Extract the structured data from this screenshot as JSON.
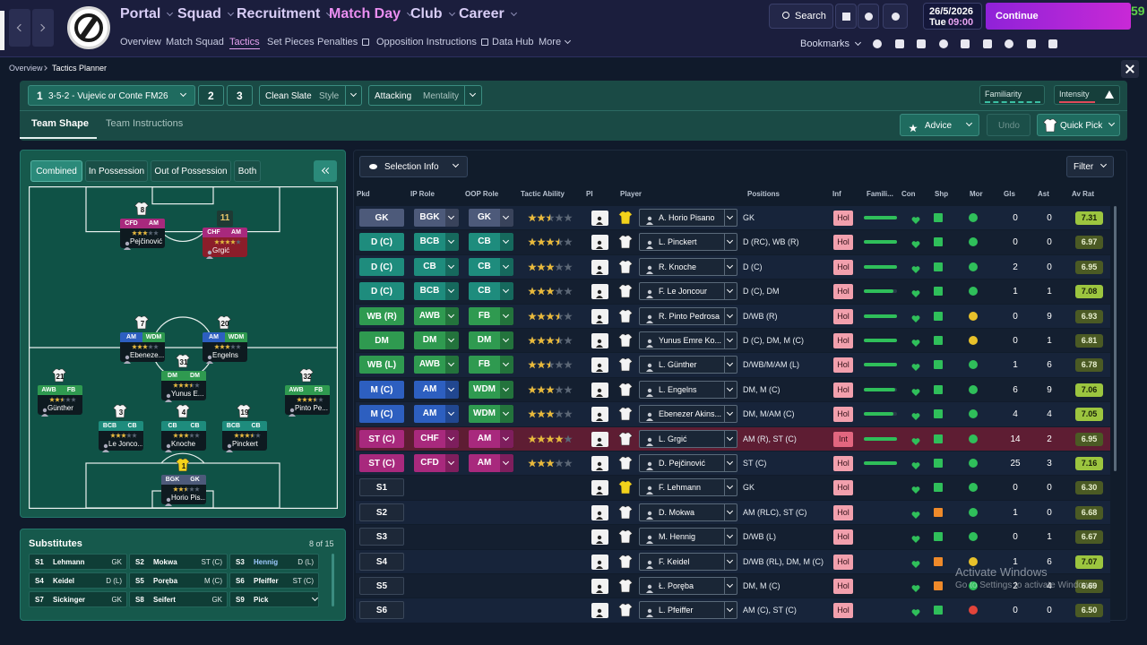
{
  "header": {
    "nav": [
      "Portal",
      "Squad",
      "Recruitment",
      "Match Day",
      "Club",
      "Career"
    ],
    "subnav": [
      "Overview",
      "Match Squad",
      "Tactics",
      "Set Pieces",
      "Penalties",
      "Opposition Instructions",
      "Data Hub",
      "More"
    ],
    "search": "Search",
    "date": "26/5/2026",
    "day": "Tue",
    "time": "09:00",
    "continue": "Continue",
    "fps": "59",
    "bookmarks": "Bookmarks"
  },
  "breadcrumb": [
    "Overview",
    "Tactics Planner"
  ],
  "tactic": {
    "slots": [
      "1",
      "2",
      "3"
    ],
    "name": "3-5-2 - Vujevic or Conte FM26",
    "style": "Clean Slate",
    "style_label": "Style",
    "mentality": "Attacking",
    "mentality_label": "Mentality",
    "familiarity": "Familiarity",
    "intensity": "Intensity",
    "tabs": [
      "Team Shape",
      "Team Instructions"
    ],
    "advice": "Advice",
    "undo": "Undo",
    "quick_pick": "Quick Pick"
  },
  "pitch": {
    "views": [
      "Combined",
      "In Possession",
      "Out of Possession",
      "Both"
    ],
    "players": [
      {
        "number": 1,
        "ip": "BGK",
        "ip_color": "#4d5a7a",
        "oop": "GK",
        "oop_color": "#4d5a7a",
        "name": "Horio Pis...",
        "ability": 2.5
      },
      {
        "number": 3,
        "ip": "BCB",
        "ip_color": "#1e8c7d",
        "oop": "CB",
        "oop_color": "#1e8c7d",
        "name": "Le Jonco...",
        "ability": 3
      },
      {
        "number": 4,
        "ip": "CB",
        "ip_color": "#1e8c7d",
        "oop": "CB",
        "oop_color": "#1e8c7d",
        "name": "Knoche",
        "ability": 3
      },
      {
        "number": 19,
        "ip": "BCB",
        "ip_color": "#1e8c7d",
        "oop": "CB",
        "oop_color": "#1e8c7d",
        "name": "Pinckert",
        "ability": 3.5
      },
      {
        "number": 21,
        "ip": "AWB",
        "ip_color": "#2f9a50",
        "oop": "FB",
        "oop_color": "#2f9a50",
        "name": "Günther",
        "ability": 2.5
      },
      {
        "number": 32,
        "ip": "AWB",
        "ip_color": "#2f9a50",
        "oop": "FB",
        "oop_color": "#2f9a50",
        "name": "Pinto Pe...",
        "ability": 3.5
      },
      {
        "number": 7,
        "ip": "AM",
        "ip_color": "#2d5fc0",
        "oop": "WDM",
        "oop_color": "#2f9a50",
        "name": "Ebeneze...",
        "ability": 3
      },
      {
        "number": 31,
        "ip": "DM",
        "ip_color": "#2f9a50",
        "oop": "DM",
        "oop_color": "#2f9a50",
        "name": "Yunus E...",
        "ability": 3.5
      },
      {
        "number": 20,
        "ip": "AM",
        "ip_color": "#2d5fc0",
        "oop": "WDM",
        "oop_color": "#2f9a50",
        "name": "Engelns",
        "ability": 3
      },
      {
        "number": 8,
        "ip": "CFD",
        "ip_color": "#a8297d",
        "oop": "AM",
        "oop_color": "#a8297d",
        "name": "Pejčinović",
        "ability": 3
      },
      {
        "number": 11,
        "ip": "CHF",
        "ip_color": "#a8297d",
        "oop": "AM",
        "oop_color": "#a8297d",
        "name": "Grgić",
        "ability": 4
      }
    ]
  },
  "substitutes": {
    "title": "Substitutes",
    "count": "8 of 15",
    "entries": [
      [
        "S1",
        "Lehmann",
        "GK"
      ],
      [
        "S2",
        "Mokwa",
        "ST (C)"
      ],
      [
        "S3",
        "Hennig",
        "D (L)"
      ],
      [
        "S4",
        "Keidel",
        "D (L)"
      ],
      [
        "S5",
        "Poręba",
        "M (C)"
      ],
      [
        "S6",
        "Pfeiffer",
        "ST (C)"
      ],
      [
        "S7",
        "Sickinger",
        "GK"
      ],
      [
        "S8",
        "Seifert",
        "GK"
      ],
      [
        "S9",
        "Pick"
      ]
    ]
  },
  "table": {
    "selection": "Selection Info",
    "filter": "Filter",
    "columns": [
      "Pkd",
      "IP Role",
      "OOP Role",
      "Tactic Ability",
      "PI",
      "Player",
      "Positions",
      "Inf",
      "Famili...",
      "Con",
      "Shp",
      "Mor",
      "Gls",
      "Ast",
      "Av Rat"
    ],
    "rows": [
      {
        "pkd": "GK",
        "pkd_color": "#4d5a7a",
        "ip": "BGK",
        "ip_color": "#4d5a7a",
        "oop": "GK",
        "oop_color": "#4d5a7a",
        "ability": 2.5,
        "kit_color": "#f2d21b",
        "player": "A. Horio Pisano",
        "positions": "GK",
        "inf": "Hol",
        "familiarity": 100,
        "shp_color": "#2fbf5a",
        "mor_color": "#2fbf5a",
        "gls": 0,
        "ast": 0,
        "rating": "7.31"
      },
      {
        "pkd": "D (C)",
        "pkd_color": "#1e8c7d",
        "ip": "BCB",
        "ip_color": "#1e8c7d",
        "oop": "CB",
        "oop_color": "#1e8c7d",
        "ability": 3.5,
        "kit_color": "#f4f4f4",
        "player": "L. Pinckert",
        "positions": "D (RC), WB (R)",
        "inf": "Hol",
        "familiarity": 100,
        "shp_color": "#2fbf5a",
        "mor_color": "#2fbf5a",
        "gls": 0,
        "ast": 0,
        "rating": "6.97"
      },
      {
        "pkd": "D (C)",
        "pkd_color": "#1e8c7d",
        "ip": "CB",
        "ip_color": "#1e8c7d",
        "oop": "CB",
        "oop_color": "#1e8c7d",
        "ability": 3,
        "kit_color": "#f4f4f4",
        "player": "R. Knoche",
        "positions": "D (C)",
        "inf": "Hol",
        "familiarity": 100,
        "shp_color": "#2fbf5a",
        "mor_color": "#2fbf5a",
        "gls": 2,
        "ast": 0,
        "rating": "6.95"
      },
      {
        "pkd": "D (C)",
        "pkd_color": "#1e8c7d",
        "ip": "BCB",
        "ip_color": "#1e8c7d",
        "oop": "CB",
        "oop_color": "#1e8c7d",
        "ability": 3,
        "kit_color": "#f4f4f4",
        "player": "F. Le Joncour",
        "positions": "D (C), DM",
        "inf": "Hol",
        "familiarity": 90,
        "shp_color": "#2fbf5a",
        "mor_color": "#2fbf5a",
        "gls": 1,
        "ast": 1,
        "rating": "7.08"
      },
      {
        "pkd": "WB (R)",
        "pkd_color": "#2f9a50",
        "ip": "AWB",
        "ip_color": "#2f9a50",
        "oop": "FB",
        "oop_color": "#2f9a50",
        "ability": 3.5,
        "kit_color": "#f4f4f4",
        "player": "R. Pinto Pedrosa",
        "positions": "D/WB (R)",
        "inf": "Hol",
        "familiarity": 100,
        "shp_color": "#2fbf5a",
        "mor_color": "#e8c12a",
        "gls": 0,
        "ast": 9,
        "rating": "6.93"
      },
      {
        "pkd": "DM",
        "pkd_color": "#2f9a50",
        "ip": "DM",
        "ip_color": "#2f9a50",
        "oop": "DM",
        "oop_color": "#2f9a50",
        "ability": 3.5,
        "kit_color": "#f4f4f4",
        "player": "Yunus Emre Ko...",
        "positions": "D (C), DM, M (C)",
        "inf": "Hol",
        "familiarity": 100,
        "shp_color": "#2fbf5a",
        "mor_color": "#e8c12a",
        "gls": 0,
        "ast": 1,
        "rating": "6.81"
      },
      {
        "pkd": "WB (L)",
        "pkd_color": "#2f9a50",
        "ip": "AWB",
        "ip_color": "#2f9a50",
        "oop": "FB",
        "oop_color": "#2f9a50",
        "ability": 2.5,
        "kit_color": "#f4f4f4",
        "player": "L. Günther",
        "positions": "D/WB/M/AM (L)",
        "inf": "Hol",
        "familiarity": 100,
        "shp_color": "#2fbf5a",
        "mor_color": "#2fbf5a",
        "gls": 1,
        "ast": 6,
        "rating": "6.78"
      },
      {
        "pkd": "M (C)",
        "pkd_color": "#2d5fc0",
        "ip": "AM",
        "ip_color": "#2d5fc0",
        "oop": "WDM",
        "oop_color": "#2f9a50",
        "ability": 3,
        "kit_color": "#f4f4f4",
        "player": "L. Engelns",
        "positions": "DM, M (C)",
        "inf": "Hol",
        "familiarity": 95,
        "shp_color": "#2fbf5a",
        "mor_color": "#2fbf5a",
        "gls": 6,
        "ast": 9,
        "rating": "7.06"
      },
      {
        "pkd": "M (C)",
        "pkd_color": "#2d5fc0",
        "ip": "AM",
        "ip_color": "#2d5fc0",
        "oop": "WDM",
        "oop_color": "#2f9a50",
        "ability": 3,
        "kit_color": "#f4f4f4",
        "player": "Ebenezer Akins...",
        "positions": "DM, M/AM (C)",
        "inf": "Hol",
        "familiarity": 90,
        "shp_color": "#2fbf5a",
        "mor_color": "#2fbf5a",
        "gls": 4,
        "ast": 4,
        "rating": "7.05"
      },
      {
        "pkd": "ST (C)",
        "pkd_color": "#a8297d",
        "ip": "CHF",
        "ip_color": "#a8297d",
        "oop": "AM",
        "oop_color": "#a8297d",
        "ability": 4,
        "kit_color": "#f4f4f4",
        "player": "L. Grgić",
        "positions": "AM (R), ST (C)",
        "inf": "Int",
        "familiarity": 100,
        "shp_color": "#2fbf5a",
        "mor_color": "#2fbf5a",
        "gls": 14,
        "ast": 2,
        "rating": "6.95",
        "highlight": true
      },
      {
        "pkd": "ST (C)",
        "pkd_color": "#a8297d",
        "ip": "CFD",
        "ip_color": "#a8297d",
        "oop": "AM",
        "oop_color": "#a8297d",
        "ability": 3,
        "kit_color": "#f4f4f4",
        "player": "D. Pejčinović",
        "positions": "ST (C)",
        "inf": "Hol",
        "familiarity": 100,
        "shp_color": "#2fbf5a",
        "mor_color": "#2fbf5a",
        "gls": 25,
        "ast": 3,
        "rating": "7.16"
      },
      {
        "pkd": "S1",
        "pkd_color": "#1d2838",
        "kit_color": "#f2d21b",
        "player": "F. Lehmann",
        "positions": "GK",
        "inf": "Hol",
        "shp_color": "#2fbf5a",
        "mor_color": "#2fbf5a",
        "gls": 0,
        "ast": 0,
        "rating": "6.30"
      },
      {
        "pkd": "S2",
        "pkd_color": "#1d2838",
        "kit_color": "#f4f4f4",
        "player": "D. Mokwa",
        "positions": "AM (RLC), ST (C)",
        "inf": "Hol",
        "shp_color": "#ef8a2a",
        "mor_color": "#2fbf5a",
        "gls": 1,
        "ast": 0,
        "rating": "6.68"
      },
      {
        "pkd": "S3",
        "pkd_color": "#1d2838",
        "kit_color": "#f4f4f4",
        "player": "M. Hennig",
        "positions": "D/WB (L)",
        "inf": "Hol",
        "shp_color": "#2fbf5a",
        "mor_color": "#2fbf5a",
        "gls": 0,
        "ast": 1,
        "rating": "6.67"
      },
      {
        "pkd": "S4",
        "pkd_color": "#1d2838",
        "kit_color": "#f4f4f4",
        "player": "F. Keidel",
        "positions": "D/WB (RL), DM, M (C)",
        "inf": "Hol",
        "shp_color": "#ef8a2a",
        "mor_color": "#e8c12a",
        "gls": 1,
        "ast": 6,
        "rating": "7.07"
      },
      {
        "pkd": "S5",
        "pkd_color": "#1d2838",
        "kit_color": "#f4f4f4",
        "player": "Ł. Poręba",
        "positions": "DM, M (C)",
        "inf": "Hol",
        "shp_color": "#ef8a2a",
        "mor_color": "#2fbf5a",
        "gls": 2,
        "ast": 4,
        "rating": "6.69"
      },
      {
        "pkd": "S6",
        "pkd_color": "#1d2838",
        "kit_color": "#f4f4f4",
        "player": "L. Pfeiffer",
        "positions": "AM (C), ST (C)",
        "inf": "Hol",
        "shp_color": "#2fbf5a",
        "mor_color": "#e2443a",
        "gls": 0,
        "ast": 0,
        "rating": "6.50"
      }
    ]
  },
  "watermark": [
    "Activate Windows",
    "Go to Settings to activate Windows."
  ]
}
